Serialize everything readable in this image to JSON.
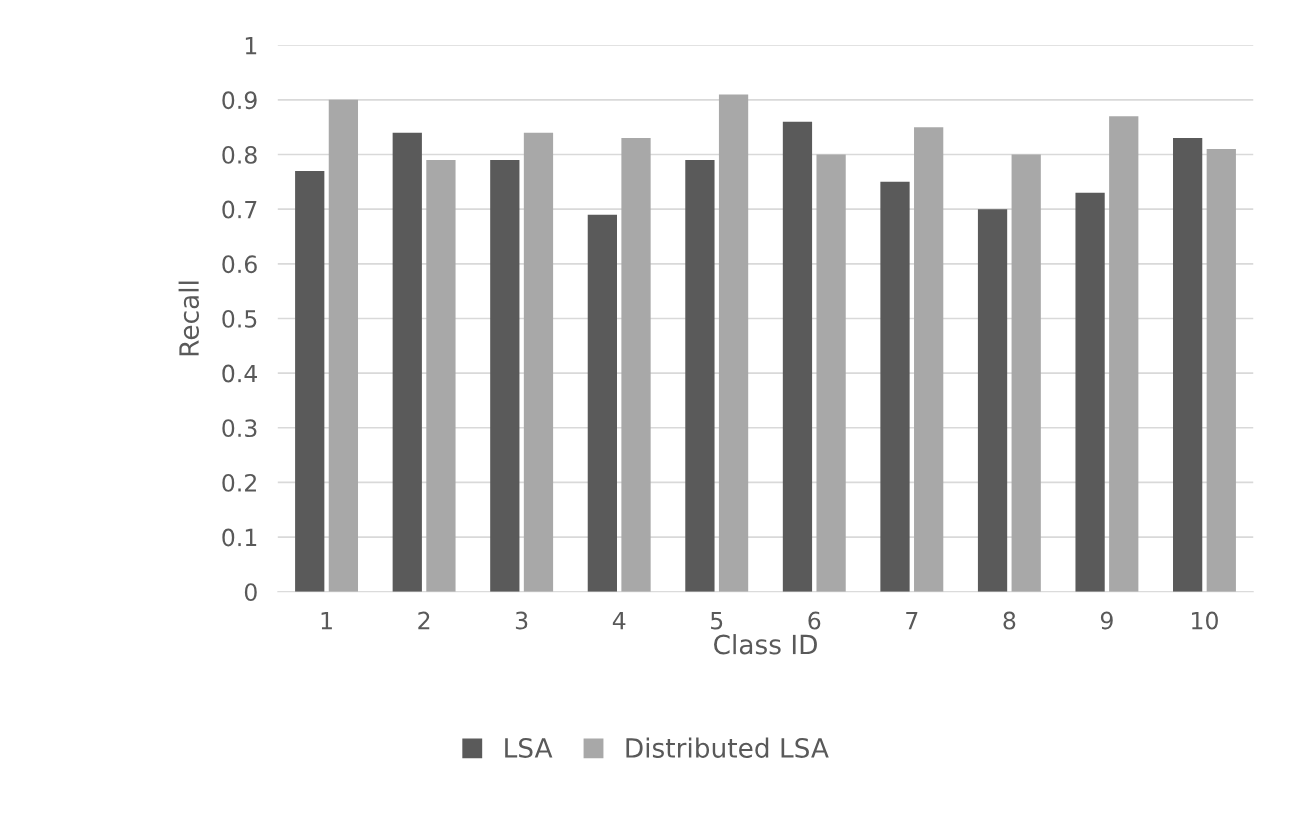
{
  "chart_data": {
    "type": "bar",
    "xlabel": "Class ID",
    "ylabel": "Recall",
    "categories": [
      "1",
      "2",
      "3",
      "4",
      "5",
      "6",
      "7",
      "8",
      "9",
      "10"
    ],
    "series": [
      {
        "name": "LSA",
        "color": "#5a5a5a",
        "values": [
          0.77,
          0.84,
          0.79,
          0.69,
          0.79,
          0.86,
          0.75,
          0.7,
          0.73,
          0.83
        ]
      },
      {
        "name": "Distributed LSA",
        "color": "#a8a8a8",
        "values": [
          0.9,
          0.79,
          0.84,
          0.83,
          0.91,
          0.8,
          0.85,
          0.8,
          0.87,
          0.81
        ]
      }
    ],
    "ylim": [
      0,
      1
    ],
    "yticks": [
      0,
      0.1,
      0.2,
      0.3,
      0.4,
      0.5,
      0.6,
      0.7,
      0.8,
      0.9,
      1
    ],
    "grid": "y",
    "legend": "bottom"
  }
}
